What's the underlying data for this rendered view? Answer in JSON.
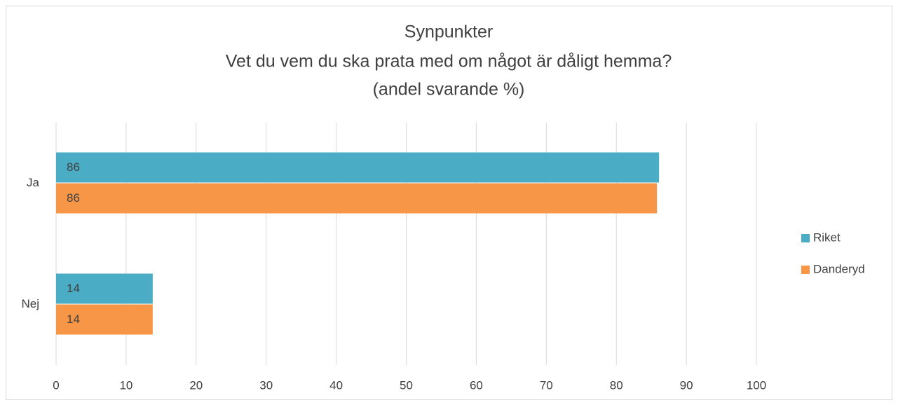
{
  "chart_data": {
    "type": "bar",
    "orientation": "horizontal",
    "title": [
      "Synpunkter",
      "Vet du vem du ska prata med om något är dåligt hemma?",
      "(andel svarande %)"
    ],
    "categories": [
      "Ja",
      "Nej"
    ],
    "series": [
      {
        "name": "Riket",
        "color": "#4bacc6",
        "values": [
          86.1,
          13.8
        ],
        "value_labels": [
          "86",
          "14"
        ]
      },
      {
        "name": "Danderyd",
        "color": "#f79646",
        "values": [
          85.8,
          13.8
        ],
        "value_labels": [
          "86",
          "14"
        ]
      }
    ],
    "xlim": [
      0,
      100
    ],
    "xticks": [
      0,
      10,
      20,
      30,
      40,
      50,
      60,
      70,
      80,
      90,
      100
    ],
    "grid": true,
    "legend": "right"
  }
}
